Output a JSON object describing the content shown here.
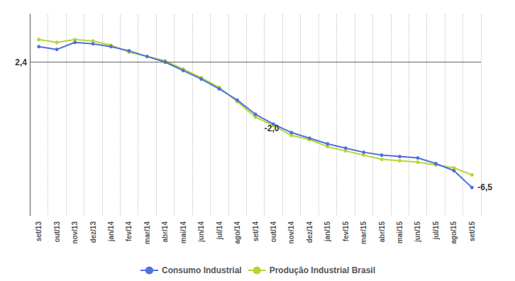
{
  "chart_data": {
    "type": "line",
    "categories": [
      "set/13",
      "out/13",
      "nov/13",
      "dez/13",
      "jan/14",
      "fev/14",
      "mar/14",
      "abr/14",
      "mai/14",
      "jun/14",
      "jul/14",
      "ago/14",
      "set/14",
      "out/14",
      "nov/14",
      "dez/14",
      "jan/15",
      "fev/15",
      "mar/15",
      "abr/15",
      "mai/15",
      "jun/15",
      "jul/15",
      "ago/15",
      "set/15"
    ],
    "series": [
      {
        "name": "Consumo Industrial",
        "marker": "circle",
        "line_style": "solid",
        "values": [
          3.5,
          3.3,
          3.8,
          3.7,
          3.5,
          3.2,
          2.8,
          2.4,
          1.8,
          1.2,
          0.5,
          -0.3,
          -1.3,
          -2.0,
          -2.6,
          -3.0,
          -3.4,
          -3.7,
          -4.0,
          -4.2,
          -4.3,
          -4.4,
          -4.8,
          -5.3,
          -6.5
        ]
      },
      {
        "name": "Produção Industrial Brasil",
        "marker": "circle",
        "line_style": "solid",
        "values": [
          4.0,
          3.8,
          4.0,
          3.9,
          3.6,
          3.1,
          2.8,
          2.5,
          1.9,
          1.3,
          0.6,
          -0.4,
          -1.5,
          -2.1,
          -2.8,
          -3.1,
          -3.6,
          -3.9,
          -4.2,
          -4.5,
          -4.6,
          -4.7,
          -4.9,
          -5.1,
          -5.6
        ]
      }
    ],
    "ylim": [
      -8.5,
      5.8
    ],
    "hline": 2.4,
    "annotations": [
      {
        "text": "2,4",
        "y": 2.4
      },
      {
        "text": "-2,0",
        "y": -2.0
      },
      {
        "text": "-6,5",
        "y": -6.5
      }
    ],
    "grid": true,
    "legend": "bottom",
    "tick_labels": "x"
  }
}
